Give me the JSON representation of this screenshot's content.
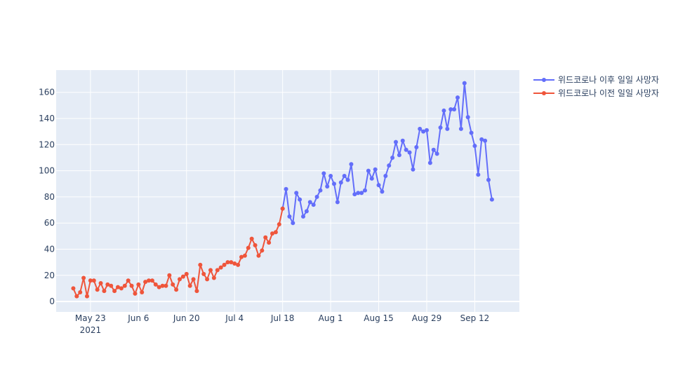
{
  "chart_data": {
    "type": "line",
    "mode": "lines+markers",
    "x_axis_type": "date",
    "x_range": [
      "2021-05-13",
      "2021-09-25"
    ],
    "y_range": [
      -8,
      177
    ],
    "x_ticks": [
      {
        "date": "2021-05-23",
        "label": "May 23",
        "sublabel": "2021"
      },
      {
        "date": "2021-06-06",
        "label": "Jun 6"
      },
      {
        "date": "2021-06-20",
        "label": "Jun 20"
      },
      {
        "date": "2021-07-04",
        "label": "Jul 4"
      },
      {
        "date": "2021-07-18",
        "label": "Jul 18"
      },
      {
        "date": "2021-08-01",
        "label": "Aug 1"
      },
      {
        "date": "2021-08-15",
        "label": "Aug 15"
      },
      {
        "date": "2021-08-29",
        "label": "Aug 29"
      },
      {
        "date": "2021-09-12",
        "label": "Sep 12"
      }
    ],
    "y_ticks": [
      0,
      20,
      40,
      60,
      80,
      100,
      120,
      140,
      160
    ],
    "grid": true,
    "legend_position": "top-right",
    "plot_bg": "#e5ecf6",
    "series": [
      {
        "name": "위드코로나 이후 일일 사망자",
        "color": "#636efa",
        "start_date": "2021-07-18",
        "values": [
          71,
          86,
          65,
          60,
          83,
          78,
          65,
          69,
          76,
          74,
          80,
          85,
          98,
          88,
          96,
          90,
          76,
          91,
          96,
          93,
          105,
          82,
          83,
          83,
          85,
          100,
          94,
          101,
          89,
          84,
          96,
          104,
          110,
          122,
          112,
          123,
          116,
          114,
          101,
          118,
          132,
          130,
          131,
          106,
          116,
          113,
          133,
          146,
          132,
          147,
          147,
          156,
          132,
          167,
          141,
          129,
          119,
          97,
          124,
          123,
          93,
          78
        ]
      },
      {
        "name": "위드코로나 이전 일일 사망자",
        "color": "#ef553b",
        "start_date": "2021-05-18",
        "values": [
          10,
          4,
          7,
          18,
          4,
          16,
          16,
          9,
          14,
          8,
          13,
          12,
          8,
          11,
          10,
          12,
          16,
          12,
          6,
          13,
          7,
          15,
          16,
          16,
          13,
          11,
          12,
          12,
          20,
          13,
          9,
          17,
          19,
          21,
          12,
          17,
          8,
          28,
          21,
          17,
          24,
          18,
          24,
          26,
          28,
          30,
          30,
          29,
          28,
          34,
          35,
          41,
          48,
          43,
          35,
          39,
          49,
          45,
          52,
          53,
          59,
          71
        ]
      }
    ]
  }
}
